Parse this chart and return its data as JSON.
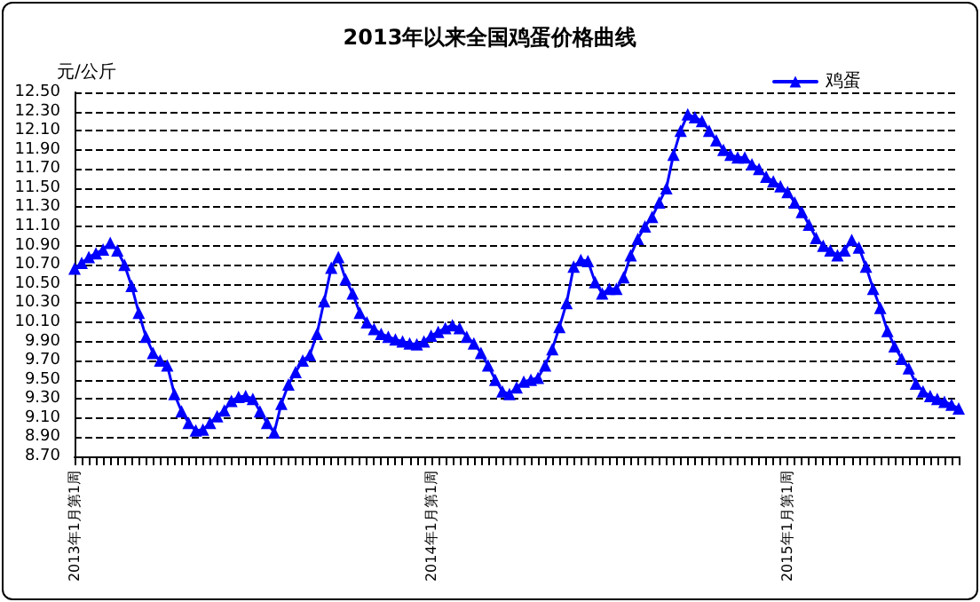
{
  "chart_data": {
    "type": "line",
    "title": "2013年以来全国鸡蛋价格曲线",
    "ylabel": "元/公斤",
    "categories": [
      "2013年1月第1周",
      null,
      null,
      null,
      null,
      null,
      null,
      null,
      null,
      null,
      null,
      null,
      null,
      null,
      null,
      null,
      null,
      null,
      null,
      null,
      null,
      null,
      null,
      null,
      null,
      null,
      null,
      null,
      null,
      null,
      null,
      null,
      null,
      null,
      null,
      null,
      null,
      null,
      null,
      null,
      null,
      null,
      null,
      null,
      null,
      null,
      null,
      null,
      null,
      null,
      "2014年1月第1周",
      null,
      null,
      null,
      null,
      null,
      null,
      null,
      null,
      null,
      null,
      null,
      null,
      null,
      null,
      null,
      null,
      null,
      null,
      null,
      null,
      null,
      null,
      null,
      null,
      null,
      null,
      null,
      null,
      null,
      null,
      null,
      null,
      null,
      null,
      null,
      null,
      null,
      null,
      null,
      null,
      null,
      null,
      null,
      null,
      null,
      null,
      null,
      null,
      null,
      "2015年1月第1周",
      null,
      null,
      null,
      null,
      null,
      null,
      null,
      null,
      null,
      null,
      null,
      null,
      null,
      null,
      null,
      null,
      null,
      null,
      null,
      null,
      null,
      null,
      null,
      null
    ],
    "series": [
      {
        "name": "鸡蛋",
        "color": "#0000ff",
        "values": [
          10.66,
          10.72,
          10.78,
          10.82,
          10.86,
          10.93,
          10.85,
          10.7,
          10.48,
          10.2,
          9.95,
          9.78,
          9.7,
          9.65,
          9.35,
          9.17,
          9.05,
          8.97,
          8.98,
          9.05,
          9.12,
          9.18,
          9.28,
          9.32,
          9.33,
          9.3,
          9.17,
          9.05,
          8.95,
          9.25,
          9.45,
          9.58,
          9.7,
          9.76,
          9.98,
          10.32,
          10.67,
          10.78,
          10.55,
          10.4,
          10.2,
          10.1,
          10.03,
          9.98,
          9.95,
          9.92,
          9.9,
          9.88,
          9.87,
          9.9,
          9.96,
          10.0,
          10.04,
          10.07,
          10.04,
          9.95,
          9.88,
          9.78,
          9.65,
          9.5,
          9.38,
          9.35,
          9.42,
          9.48,
          9.5,
          9.52,
          9.65,
          9.82,
          10.05,
          10.3,
          10.68,
          10.75,
          10.74,
          10.52,
          10.4,
          10.45,
          10.45,
          10.57,
          10.8,
          10.97,
          11.1,
          11.2,
          11.35,
          11.5,
          11.85,
          12.1,
          12.27,
          12.24,
          12.2,
          12.1,
          12.0,
          11.9,
          11.85,
          11.82,
          11.82,
          11.75,
          11.7,
          11.62,
          11.57,
          11.52,
          11.46,
          11.35,
          11.25,
          11.12,
          10.98,
          10.9,
          10.85,
          10.8,
          10.85,
          10.96,
          10.88,
          10.68,
          10.45,
          10.25,
          10.01,
          9.85,
          9.72,
          9.62,
          9.46,
          9.38,
          9.33,
          9.3,
          9.27,
          9.24,
          9.2
        ]
      }
    ],
    "ylim": [
      8.7,
      12.5
    ],
    "yticks": [
      {
        "value": 8.7,
        "label": "8.70"
      },
      {
        "value": 8.9,
        "label": "8.90"
      },
      {
        "value": 9.1,
        "label": "9.10"
      },
      {
        "value": 9.3,
        "label": "9.30"
      },
      {
        "value": 9.5,
        "label": "9.50"
      },
      {
        "value": 9.7,
        "label": "9.70"
      },
      {
        "value": 9.9,
        "label": "9.90"
      },
      {
        "value": 10.1,
        "label": "10.10"
      },
      {
        "value": 10.3,
        "label": "10.30"
      },
      {
        "value": 10.5,
        "label": "10.50"
      },
      {
        "value": 10.7,
        "label": "10.70"
      },
      {
        "value": 10.9,
        "label": "10.90"
      },
      {
        "value": 11.1,
        "label": "11.10"
      },
      {
        "value": 11.3,
        "label": "11.30"
      },
      {
        "value": 11.5,
        "label": "11.50"
      },
      {
        "value": 11.7,
        "label": "11.70"
      },
      {
        "value": 11.9,
        "label": "11.90"
      },
      {
        "value": 12.1,
        "label": "12.10"
      },
      {
        "value": 12.3,
        "label": "12.30"
      },
      {
        "value": 12.5,
        "label": "12.50"
      }
    ],
    "grid": "y",
    "legend": "top right",
    "marker": "triangle",
    "line_style": "solid"
  }
}
